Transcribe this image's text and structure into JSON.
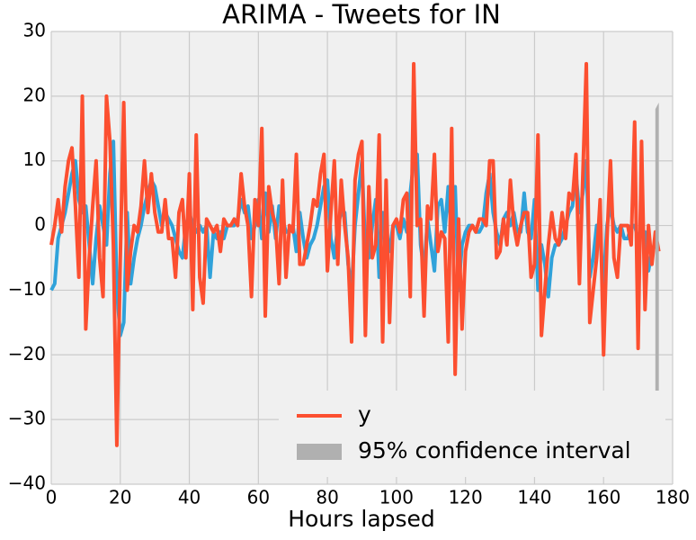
{
  "chart_data": {
    "type": "line",
    "title": "ARIMA - Tweets for IN",
    "xlabel": "Hours lapsed",
    "x": [
      0,
      1,
      2,
      3,
      4,
      5,
      6,
      7,
      8,
      9,
      10,
      11,
      12,
      13,
      14,
      15,
      16,
      17,
      18,
      19,
      20,
      21,
      22,
      23,
      24,
      25,
      26,
      27,
      28,
      29,
      30,
      31,
      32,
      33,
      34,
      35,
      36,
      37,
      38,
      39,
      40,
      41,
      42,
      43,
      44,
      45,
      46,
      47,
      48,
      49,
      50,
      51,
      52,
      53,
      54,
      55,
      56,
      57,
      58,
      59,
      60,
      61,
      62,
      63,
      64,
      65,
      66,
      67,
      68,
      69,
      70,
      71,
      72,
      73,
      74,
      75,
      76,
      77,
      78,
      79,
      80,
      81,
      82,
      83,
      84,
      85,
      86,
      87,
      88,
      89,
      90,
      91,
      92,
      93,
      94,
      95,
      96,
      97,
      98,
      99,
      100,
      101,
      102,
      103,
      104,
      105,
      106,
      107,
      108,
      109,
      110,
      111,
      112,
      113,
      114,
      115,
      116,
      117,
      118,
      119,
      120,
      121,
      122,
      123,
      124,
      125,
      126,
      127,
      128,
      129,
      130,
      131,
      132,
      133,
      134,
      135,
      136,
      137,
      138,
      139,
      140,
      141,
      142,
      143,
      144,
      145,
      146,
      147,
      148,
      149,
      150,
      151,
      152,
      153,
      154,
      155,
      156,
      157,
      158,
      159,
      160,
      161,
      162,
      163,
      164,
      165,
      166,
      167,
      168,
      169,
      170,
      171,
      172,
      173,
      174,
      175,
      176
    ],
    "series": [
      {
        "color": "#30a2da",
        "values": [
          -10,
          -9,
          -2,
          0,
          2,
          5,
          8,
          10,
          4,
          2,
          3,
          -3,
          -9,
          -2,
          3,
          0,
          -3,
          8,
          13,
          -10,
          -17,
          -15,
          2,
          -9,
          -5,
          -2,
          0,
          3,
          5,
          7,
          6,
          3,
          0,
          2,
          1,
          0,
          -2,
          -4,
          -5,
          0,
          2,
          0,
          -1,
          0,
          -1,
          0,
          -8,
          -1,
          -2,
          -1,
          -2,
          0,
          0,
          0,
          1,
          4,
          2,
          3,
          -2,
          0,
          4,
          -2,
          5,
          -1,
          3,
          -2,
          3,
          1,
          -1,
          -1,
          0,
          -4,
          2,
          -2,
          -5,
          -3,
          -2,
          0,
          3,
          6,
          7,
          -2,
          -5,
          0,
          2,
          2,
          -6,
          -10,
          0,
          5,
          10,
          -4,
          -5,
          0,
          4,
          -8,
          2,
          -1,
          -4,
          0,
          0,
          -2,
          1,
          -1,
          5,
          10,
          11,
          -3,
          -7,
          1,
          -3,
          -7,
          3,
          4,
          -1,
          6,
          -2,
          6,
          -10,
          -3,
          -1,
          0,
          0,
          -1,
          -1,
          0,
          5,
          8,
          2,
          -1,
          -3,
          1,
          2,
          0,
          2,
          -1,
          -1,
          5,
          -1,
          -2,
          4,
          -10,
          -3,
          -6,
          -11,
          -5,
          -3,
          -3,
          -2,
          0,
          2,
          3,
          8,
          2,
          5,
          10,
          -8,
          -5,
          0,
          -2,
          -9,
          0,
          3,
          0,
          -1,
          0,
          -2,
          -2,
          0,
          0,
          -2,
          -1,
          -1,
          -7,
          -4,
          -3,
          -3
        ]
      },
      {
        "name": "y",
        "color": "#fc4f30",
        "values": [
          -3,
          0,
          4,
          -1,
          6,
          10,
          12,
          3,
          -8,
          20,
          -16,
          -5,
          3,
          10,
          -5,
          -11,
          20,
          13,
          -3,
          -34,
          -5,
          19,
          -10,
          -4,
          0,
          -1,
          3,
          10,
          2,
          8,
          2,
          -1,
          -1,
          4,
          -2,
          -2,
          -8,
          2,
          4,
          -5,
          8,
          -13,
          14,
          -8,
          -12,
          1,
          0,
          -1,
          0,
          -4,
          1,
          0,
          0,
          1,
          0,
          8,
          3,
          0,
          -11,
          4,
          0,
          15,
          -14,
          6,
          2,
          0,
          -9,
          7,
          -8,
          0,
          -1,
          11,
          -6,
          -6,
          -3,
          0,
          4,
          3,
          8,
          11,
          -7,
          2,
          10,
          -6,
          7,
          0,
          -5,
          -18,
          7,
          11,
          13,
          -17,
          6,
          -5,
          -3,
          14,
          -18,
          7,
          -15,
          0,
          1,
          -1,
          4,
          5,
          -11,
          25,
          0,
          1,
          -14,
          3,
          1,
          11,
          -4,
          -1,
          -2,
          -18,
          15,
          -23,
          1,
          -16,
          -4,
          -1,
          0,
          -1,
          1,
          1,
          0,
          10,
          10,
          -5,
          -4,
          1,
          -3,
          7,
          0,
          -3,
          0,
          2,
          2,
          -8,
          -6,
          14,
          -17,
          -10,
          -3,
          2,
          -2,
          -3,
          2,
          -2,
          5,
          4,
          11,
          -9,
          8,
          25,
          -15,
          -10,
          -5,
          4,
          -20,
          -2,
          10,
          -5,
          -8,
          0,
          0,
          0,
          -3,
          16,
          -19,
          13,
          -13,
          0,
          -6,
          -1,
          -4
        ]
      }
    ],
    "interval": {
      "name": "95% confidence interval",
      "color": "#b0b0b0",
      "x": [
        175,
        176
      ],
      "lower": [
        -26,
        -26
      ],
      "upper": [
        18,
        19
      ]
    },
    "xlim": [
      0,
      180
    ],
    "xticks": [
      0,
      20,
      40,
      60,
      80,
      100,
      120,
      140,
      160,
      180
    ],
    "ylim": [
      -40,
      30
    ],
    "yticks": [
      {
        "value": -40,
        "label": "−40"
      },
      {
        "value": -30,
        "label": "−30"
      },
      {
        "value": -20,
        "label": "−20"
      },
      {
        "value": -10,
        "label": "−10"
      },
      0,
      10,
      20,
      30
    ],
    "grid": true,
    "legend": "lower right"
  }
}
